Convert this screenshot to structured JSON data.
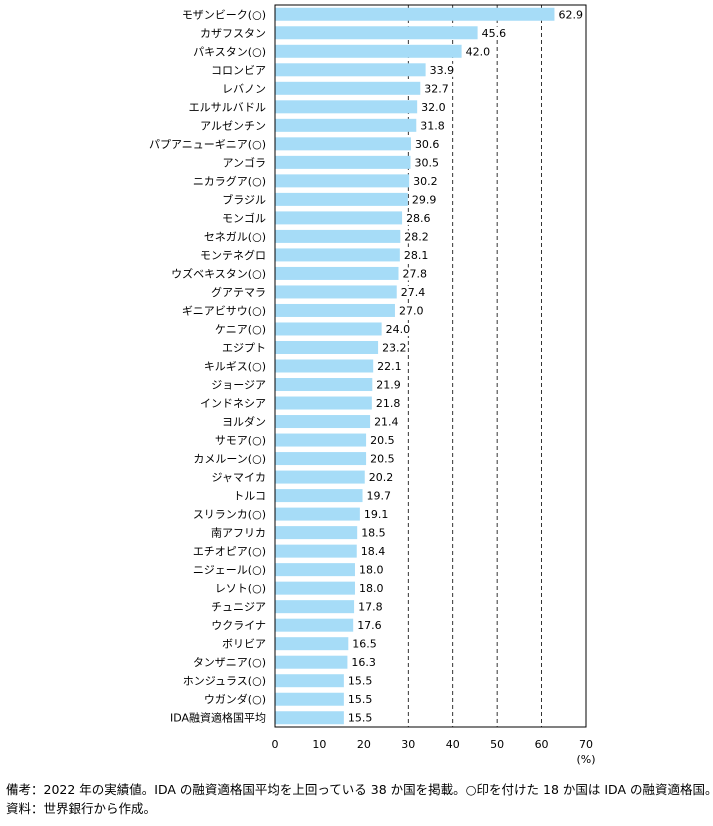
{
  "chart_data": {
    "type": "bar",
    "orientation": "horizontal",
    "title": "",
    "xlabel": "",
    "ylabel": "",
    "unit_label": "(%)",
    "xlim": [
      0,
      70
    ],
    "xticks": [
      0,
      10,
      20,
      30,
      40,
      50,
      60,
      70
    ],
    "gridlines": [
      30,
      40,
      50,
      60
    ],
    "grid_style": "dashed-vertical",
    "bar_color": "#a6dcf7",
    "legend": "none",
    "categories": [
      "モザンビーク(○)",
      "カザフスタン",
      "パキスタン(○)",
      "コロンビア",
      "レバノン",
      "エルサルバドル",
      "アルゼンチン",
      "パプアニューギニア(○)",
      "アンゴラ",
      "ニカラグア(○)",
      "ブラジル",
      "モンゴル",
      "セネガル(○)",
      "モンテネグロ",
      "ウズベキスタン(○)",
      "グアテマラ",
      "ギニアビサウ(○)",
      "ケニア(○)",
      "エジプト",
      "キルギス(○)",
      "ジョージア",
      "インドネシア",
      "ヨルダン",
      "サモア(○)",
      "カメルーン(○)",
      "ジャマイカ",
      "トルコ",
      "スリランカ(○)",
      "南アフリカ",
      "エチオピア(○)",
      "ニジェール(○)",
      "レソト(○)",
      "チュニジア",
      "ウクライナ",
      "ボリビア",
      "タンザニア(○)",
      "ホンジュラス(○)",
      "ウガンダ(○)",
      "IDA融資適格国平均"
    ],
    "values": [
      62.9,
      45.6,
      42.0,
      33.9,
      32.7,
      32.0,
      31.8,
      30.6,
      30.5,
      30.2,
      29.9,
      28.6,
      28.2,
      28.1,
      27.8,
      27.4,
      27.0,
      24.0,
      23.2,
      22.1,
      21.9,
      21.8,
      21.4,
      20.5,
      20.5,
      20.2,
      19.7,
      19.1,
      18.5,
      18.4,
      18.0,
      18.0,
      17.8,
      17.6,
      16.5,
      16.3,
      15.5,
      15.5,
      15.5
    ],
    "value_labels": [
      "62.9",
      "45.6",
      "42.0",
      "33.9",
      "32.7",
      "32.0",
      "31.8",
      "30.6",
      "30.5",
      "30.2",
      "29.9",
      "28.6",
      "28.2",
      "28.1",
      "27.8",
      "27.4",
      "27.0",
      "24.0",
      "23.2",
      "22.1",
      "21.9",
      "21.8",
      "21.4",
      "20.5",
      "20.5",
      "20.2",
      "19.7",
      "19.1",
      "18.5",
      "18.4",
      "18.0",
      "18.0",
      "17.8",
      "17.6",
      "16.5",
      "16.3",
      "15.5",
      "15.5",
      "15.5"
    ]
  },
  "notes": {
    "line1": "備考：2022 年の実績値。IDA の融資適格国平均を上回っている 38 か国を掲載。○印を付けた 18 か国は IDA の融資適格国。",
    "line2": "資料：世界銀行から作成。"
  }
}
